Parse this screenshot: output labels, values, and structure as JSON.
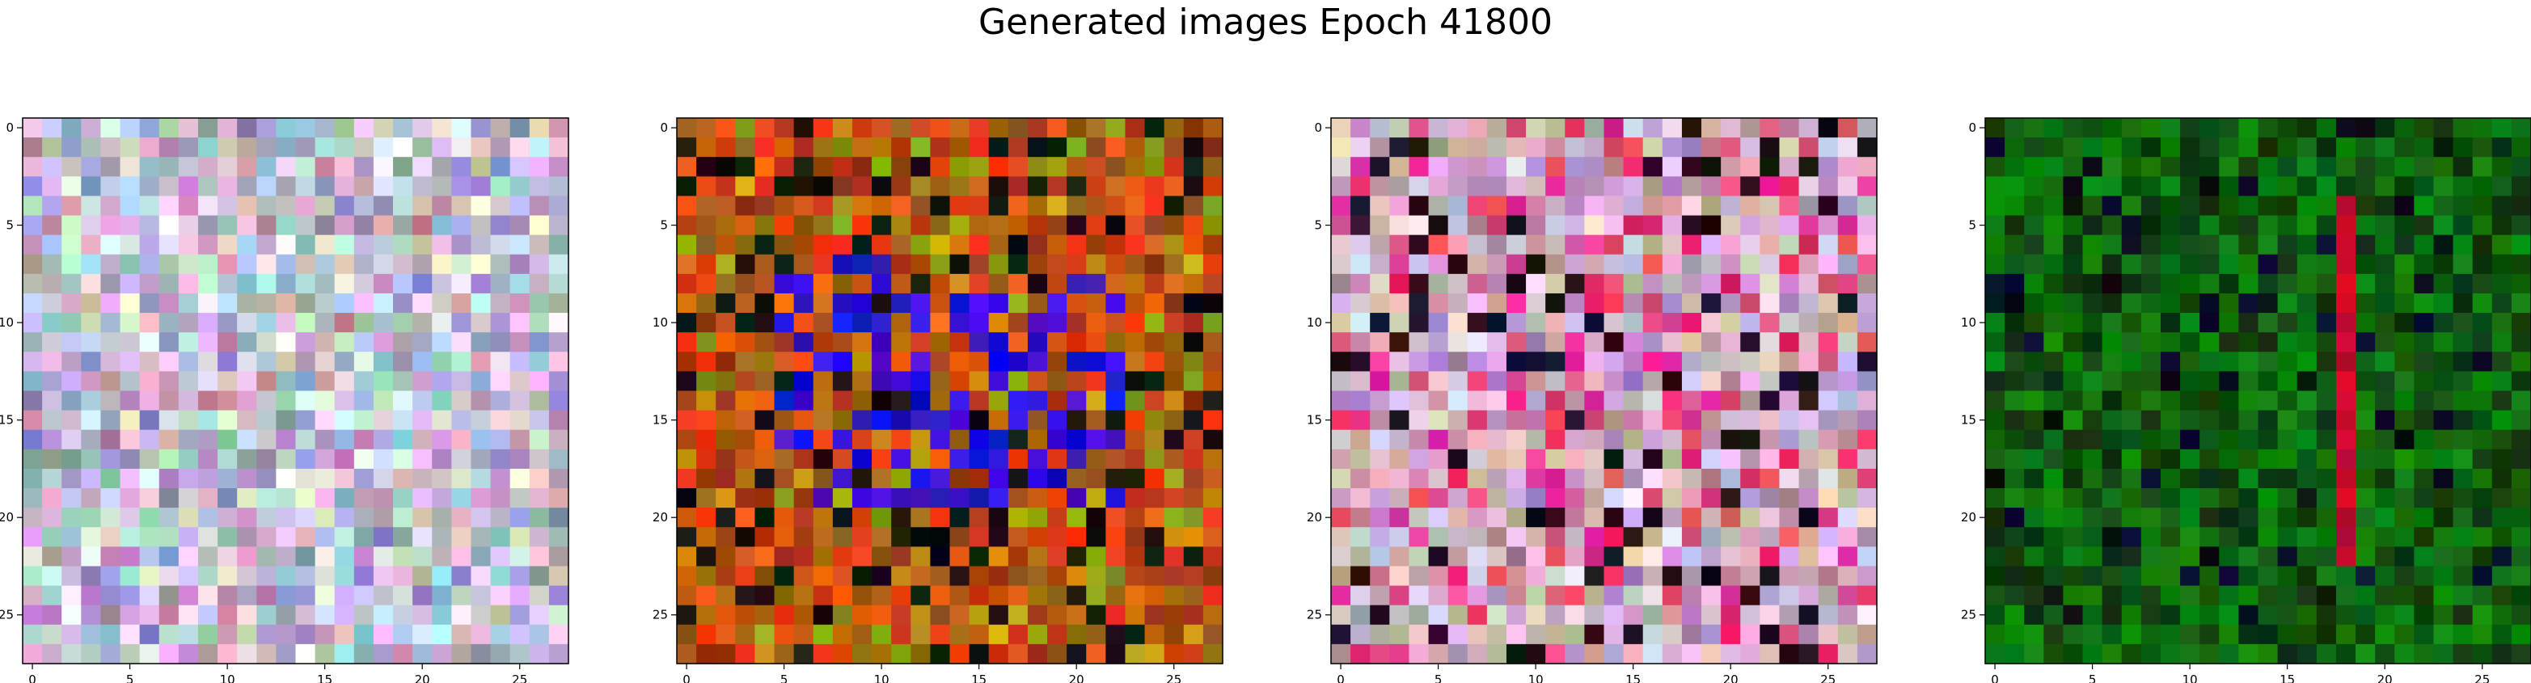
{
  "figure": {
    "title": "Generated images Epoch 41800"
  },
  "chart_data": [
    {
      "type": "heatmap",
      "grid": [
        28,
        28
      ],
      "palette": "pastel-noise",
      "xticks": [
        "0",
        "5",
        "10",
        "15",
        "20",
        "25"
      ],
      "yticks": [
        "0",
        "5",
        "10",
        "15",
        "20",
        "25"
      ],
      "xlim": [
        -0.5,
        27.5
      ],
      "ylim": [
        27.5,
        -0.5
      ],
      "grid_lines": false
    },
    {
      "type": "heatmap",
      "grid": [
        28,
        28
      ],
      "palette": "warm-with-blue-core",
      "xticks": [
        "0",
        "5",
        "10",
        "15",
        "20",
        "25"
      ],
      "yticks": [
        "0",
        "5",
        "10",
        "15",
        "20",
        "25"
      ],
      "xlim": [
        -0.5,
        27.5
      ],
      "ylim": [
        27.5,
        -0.5
      ],
      "grid_lines": false
    },
    {
      "type": "heatmap",
      "grid": [
        28,
        28
      ],
      "palette": "pastel-pink",
      "xticks": [
        "0",
        "5",
        "10",
        "15",
        "20",
        "25"
      ],
      "yticks": [
        "0",
        "5",
        "10",
        "15",
        "20",
        "25"
      ],
      "xlim": [
        -0.5,
        27.5
      ],
      "ylim": [
        27.5,
        -0.5
      ],
      "grid_lines": false
    },
    {
      "type": "heatmap",
      "grid": [
        28,
        28
      ],
      "palette": "dark-green-with-red-stripe",
      "xticks": [
        "0",
        "5",
        "10",
        "15",
        "20",
        "25"
      ],
      "yticks": [
        "0",
        "5",
        "10",
        "15",
        "20",
        "25"
      ],
      "xlim": [
        -0.5,
        27.5
      ],
      "ylim": [
        27.5,
        -0.5
      ],
      "grid_lines": false
    }
  ]
}
